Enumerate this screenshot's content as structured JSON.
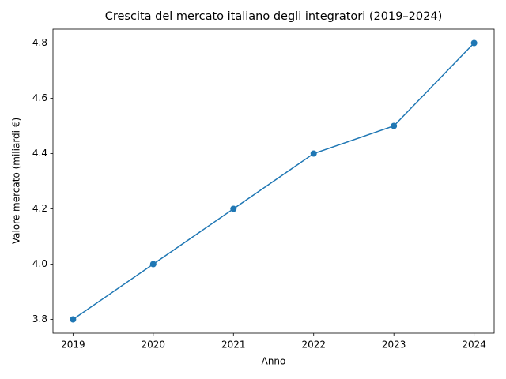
{
  "chart_data": {
    "type": "line",
    "title": "Crescita del mercato italiano degli integratori (2019–2024)",
    "x_label": "Anno",
    "y_label": "Valore mercato (miliardi €)",
    "x": [
      2019,
      2020,
      2021,
      2022,
      2023,
      2024
    ],
    "series": [
      {
        "color": "#1f77b4",
        "values": [
          3.8,
          4.0,
          4.2,
          4.4,
          4.5,
          4.8
        ]
      }
    ],
    "xlim": [
      2018.75,
      2024.25
    ],
    "xticks": [
      2019,
      2020,
      2021,
      2022,
      2023,
      2024
    ],
    "ylim": [
      3.75,
      4.85
    ],
    "yticks": [
      3.8,
      {
        "value": 4,
        "label": "4.0"
      },
      4.2,
      4.4,
      4.6,
      4.8
    ],
    "grid": false,
    "markers": true
  }
}
